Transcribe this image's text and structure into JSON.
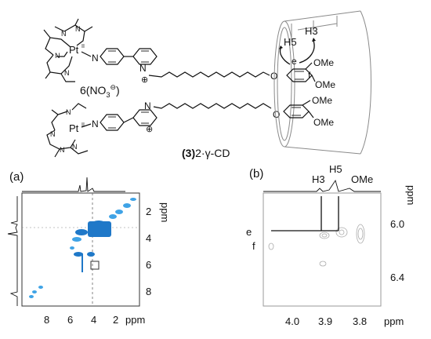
{
  "figure": {
    "structure": {
      "pt_label_top": "Pt",
      "pt_label_bottom": "Pt",
      "pt_superscript_top": "II",
      "pt_superscript_bottom": "II",
      "anion": "6(NO",
      "anion_sub": "3",
      "anion_charge": "⊖",
      "anion_close": ")",
      "compound_label_bold": "(3)",
      "compound_label_rest": "2·γ-CD",
      "cation_charge": "⊕",
      "n_atom": "N",
      "o_atom": "O",
      "ome_label": "OMe",
      "h3_label": "H3",
      "h5_label": "H5",
      "e_label": "e",
      "f_label": "f"
    },
    "panel_a": {
      "label": "(a)",
      "unit": "ppm",
      "x_ticks": [
        "8",
        "6",
        "4",
        "2",
        "ppm"
      ],
      "y_ticks": [
        "2",
        "4",
        "6",
        "8"
      ],
      "y_unit": "ppm"
    },
    "panel_b": {
      "label": "(b)",
      "unit": "ppm",
      "top_labels": [
        "H3",
        "H5",
        "OMe"
      ],
      "row_labels": [
        "e",
        "f"
      ],
      "x_ticks": [
        "4.0",
        "3.9",
        "3.8",
        "ppm"
      ],
      "y_ticks": [
        "6.0",
        "6.4"
      ],
      "y_unit": "ppm"
    },
    "colors": {
      "contour_blue": "#1f78c8",
      "contour_light_blue": "#3fa3e6",
      "cyclodextrin_gray": "#8a8a8a"
    }
  }
}
